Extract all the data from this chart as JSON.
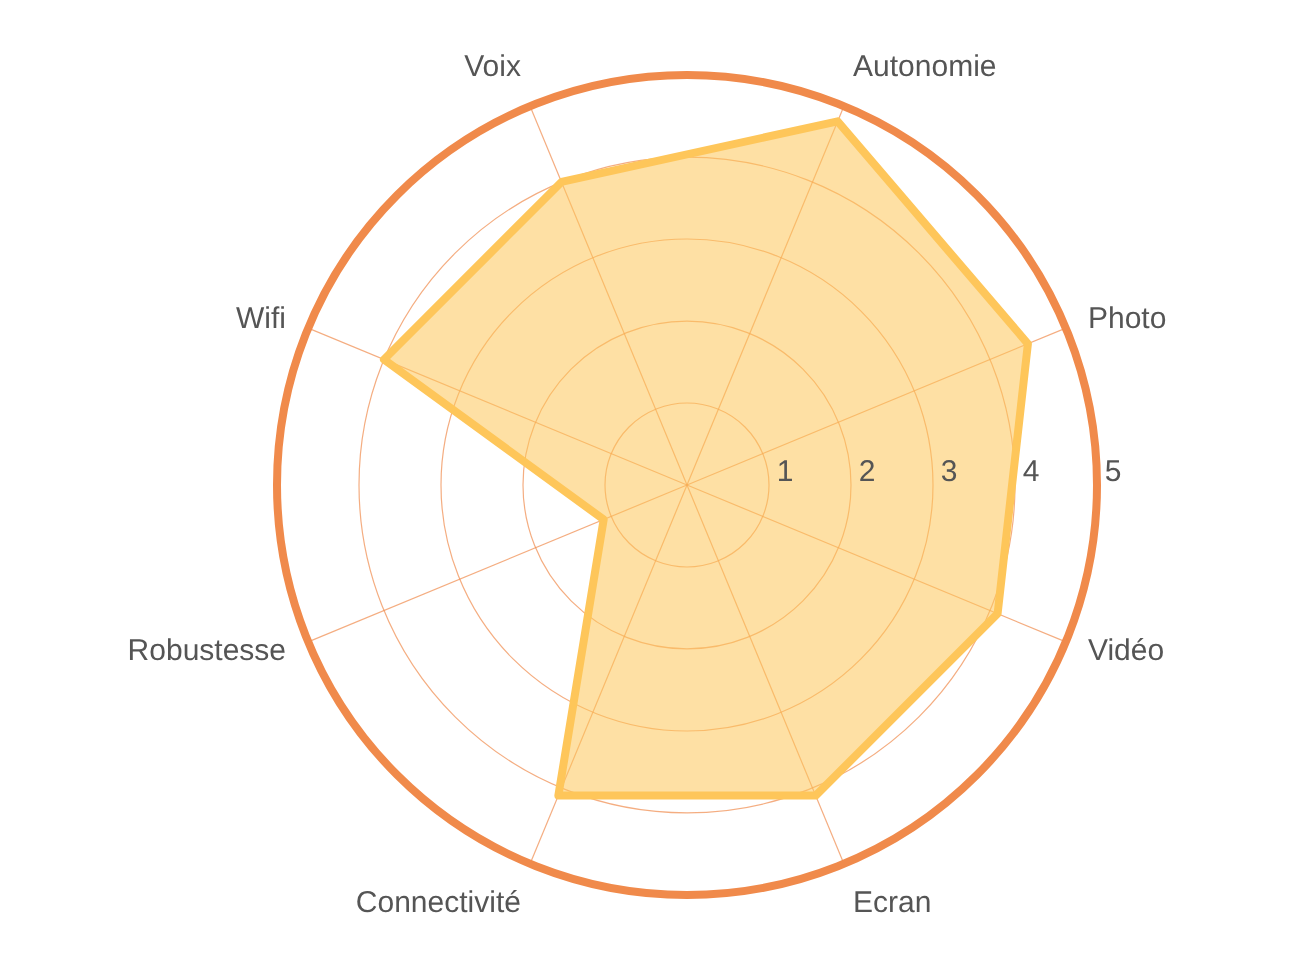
{
  "chart_data": {
    "type": "radar",
    "categories": [
      "Autonomie",
      "Photo",
      "Vidéo",
      "Ecran",
      "Connectivité",
      "Robustesse",
      "Wifi",
      "Voix"
    ],
    "series": [
      {
        "color": "#fec65a",
        "values": [
          4.8,
          4.5,
          4.1,
          4.1,
          4.1,
          1.1,
          4.0,
          4.0
        ]
      }
    ],
    "ylim": [
      0,
      5
    ],
    "yticks": [
      1,
      2,
      3,
      4,
      5
    ],
    "grid": true
  }
}
